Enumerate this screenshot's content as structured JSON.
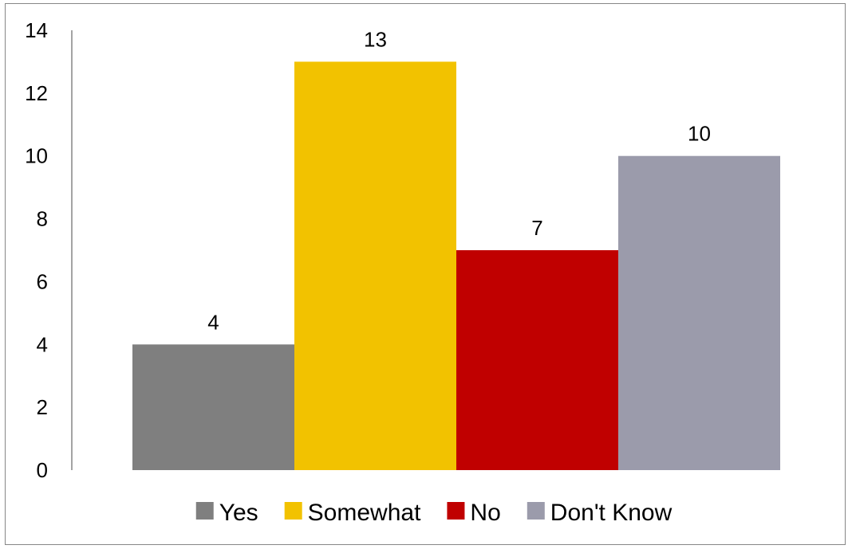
{
  "chart_data": {
    "type": "bar",
    "categories": [
      "Yes",
      "Somewhat",
      "No",
      "Don't Know"
    ],
    "values": [
      4,
      13,
      7,
      10
    ],
    "colors": [
      "#7f7f7f",
      "#f2c200",
      "#c00000",
      "#9b9bab"
    ],
    "ylim": [
      0,
      14
    ],
    "yticks": [
      0,
      2,
      4,
      6,
      8,
      10,
      12,
      14
    ],
    "data_labels": [
      "4",
      "13",
      "7",
      "10"
    ],
    "legend": {
      "position": "bottom",
      "entries": [
        "Yes",
        "Somewhat",
        "No",
        "Don't Know"
      ]
    },
    "grid": false
  }
}
